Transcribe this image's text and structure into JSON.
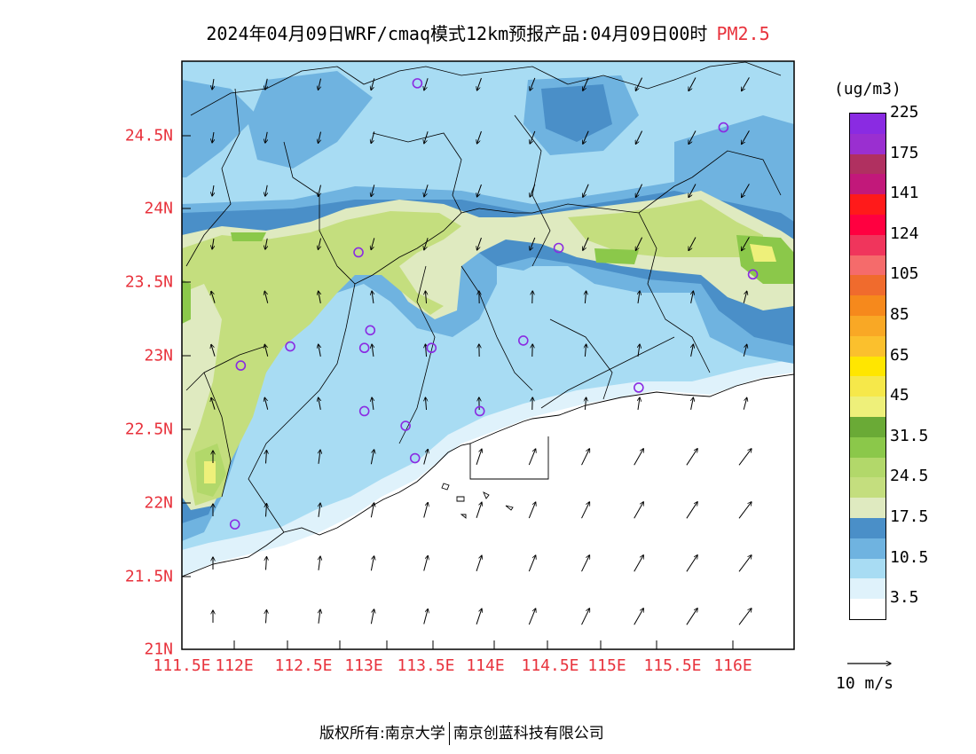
{
  "header": {
    "title": "2024年04月09日WRF/cmaq模式12km预报产品:04月09日00时",
    "variable": "PM2.5"
  },
  "colors": {
    "accent_red": "#e8323c"
  },
  "map": {
    "lon_range": [
      111.5,
      116.7
    ],
    "lat_range": [
      21.0,
      25.0
    ],
    "x_ticks": [
      "111.5E",
      "112E",
      "112.5E",
      "113E",
      "113.5E",
      "114E",
      "114.5E",
      "115E",
      "115.5E",
      "116E"
    ],
    "y_ticks": [
      "21N",
      "21.5N",
      "22N",
      "22.5N",
      "23N",
      "23.5N",
      "24N",
      "24.5N"
    ],
    "stations": [
      {
        "lon": 113.5,
        "lat": 24.85
      },
      {
        "lon": 116.1,
        "lat": 24.55
      },
      {
        "lon": 113.0,
        "lat": 23.7
      },
      {
        "lon": 114.7,
        "lat": 23.73
      },
      {
        "lon": 116.35,
        "lat": 23.55
      },
      {
        "lon": 113.1,
        "lat": 23.17
      },
      {
        "lon": 112.42,
        "lat": 23.06
      },
      {
        "lon": 113.05,
        "lat": 23.05
      },
      {
        "lon": 113.62,
        "lat": 23.05
      },
      {
        "lon": 114.4,
        "lat": 23.1
      },
      {
        "lon": 112.0,
        "lat": 22.93
      },
      {
        "lon": 115.38,
        "lat": 22.78
      },
      {
        "lon": 113.05,
        "lat": 22.62
      },
      {
        "lon": 113.4,
        "lat": 22.52
      },
      {
        "lon": 114.03,
        "lat": 22.62
      },
      {
        "lon": 113.48,
        "lat": 22.3
      },
      {
        "lon": 111.95,
        "lat": 21.85
      }
    ]
  },
  "legend": {
    "unit": "(ug/m3)",
    "colors": [
      "#ffffff",
      "#dff2fb",
      "#a8dcf3",
      "#6fb3e0",
      "#4a8fc8",
      "#dfeac0",
      "#c4de7e",
      "#b2d86a",
      "#8bc84a",
      "#6aaa36",
      "#eef07a",
      "#f6e84a",
      "#ffe600",
      "#fbc02d",
      "#f9a825",
      "#f6891c",
      "#f06b2d",
      "#f56b6b",
      "#f0355c",
      "#ff0040",
      "#ff1a1a",
      "#c2187a",
      "#b03060",
      "#9a2fd0",
      "#8a2be2"
    ],
    "labels": [
      "3.5",
      "10.5",
      "17.5",
      "24.5",
      "31.5",
      "45",
      "65",
      "85",
      "105",
      "124",
      "141",
      "175",
      "225"
    ]
  },
  "wind_ref": {
    "label": "10 m/s"
  },
  "footer": {
    "left": "版权所有:南京大学",
    "right": "南京创蓝科技有限公司"
  }
}
